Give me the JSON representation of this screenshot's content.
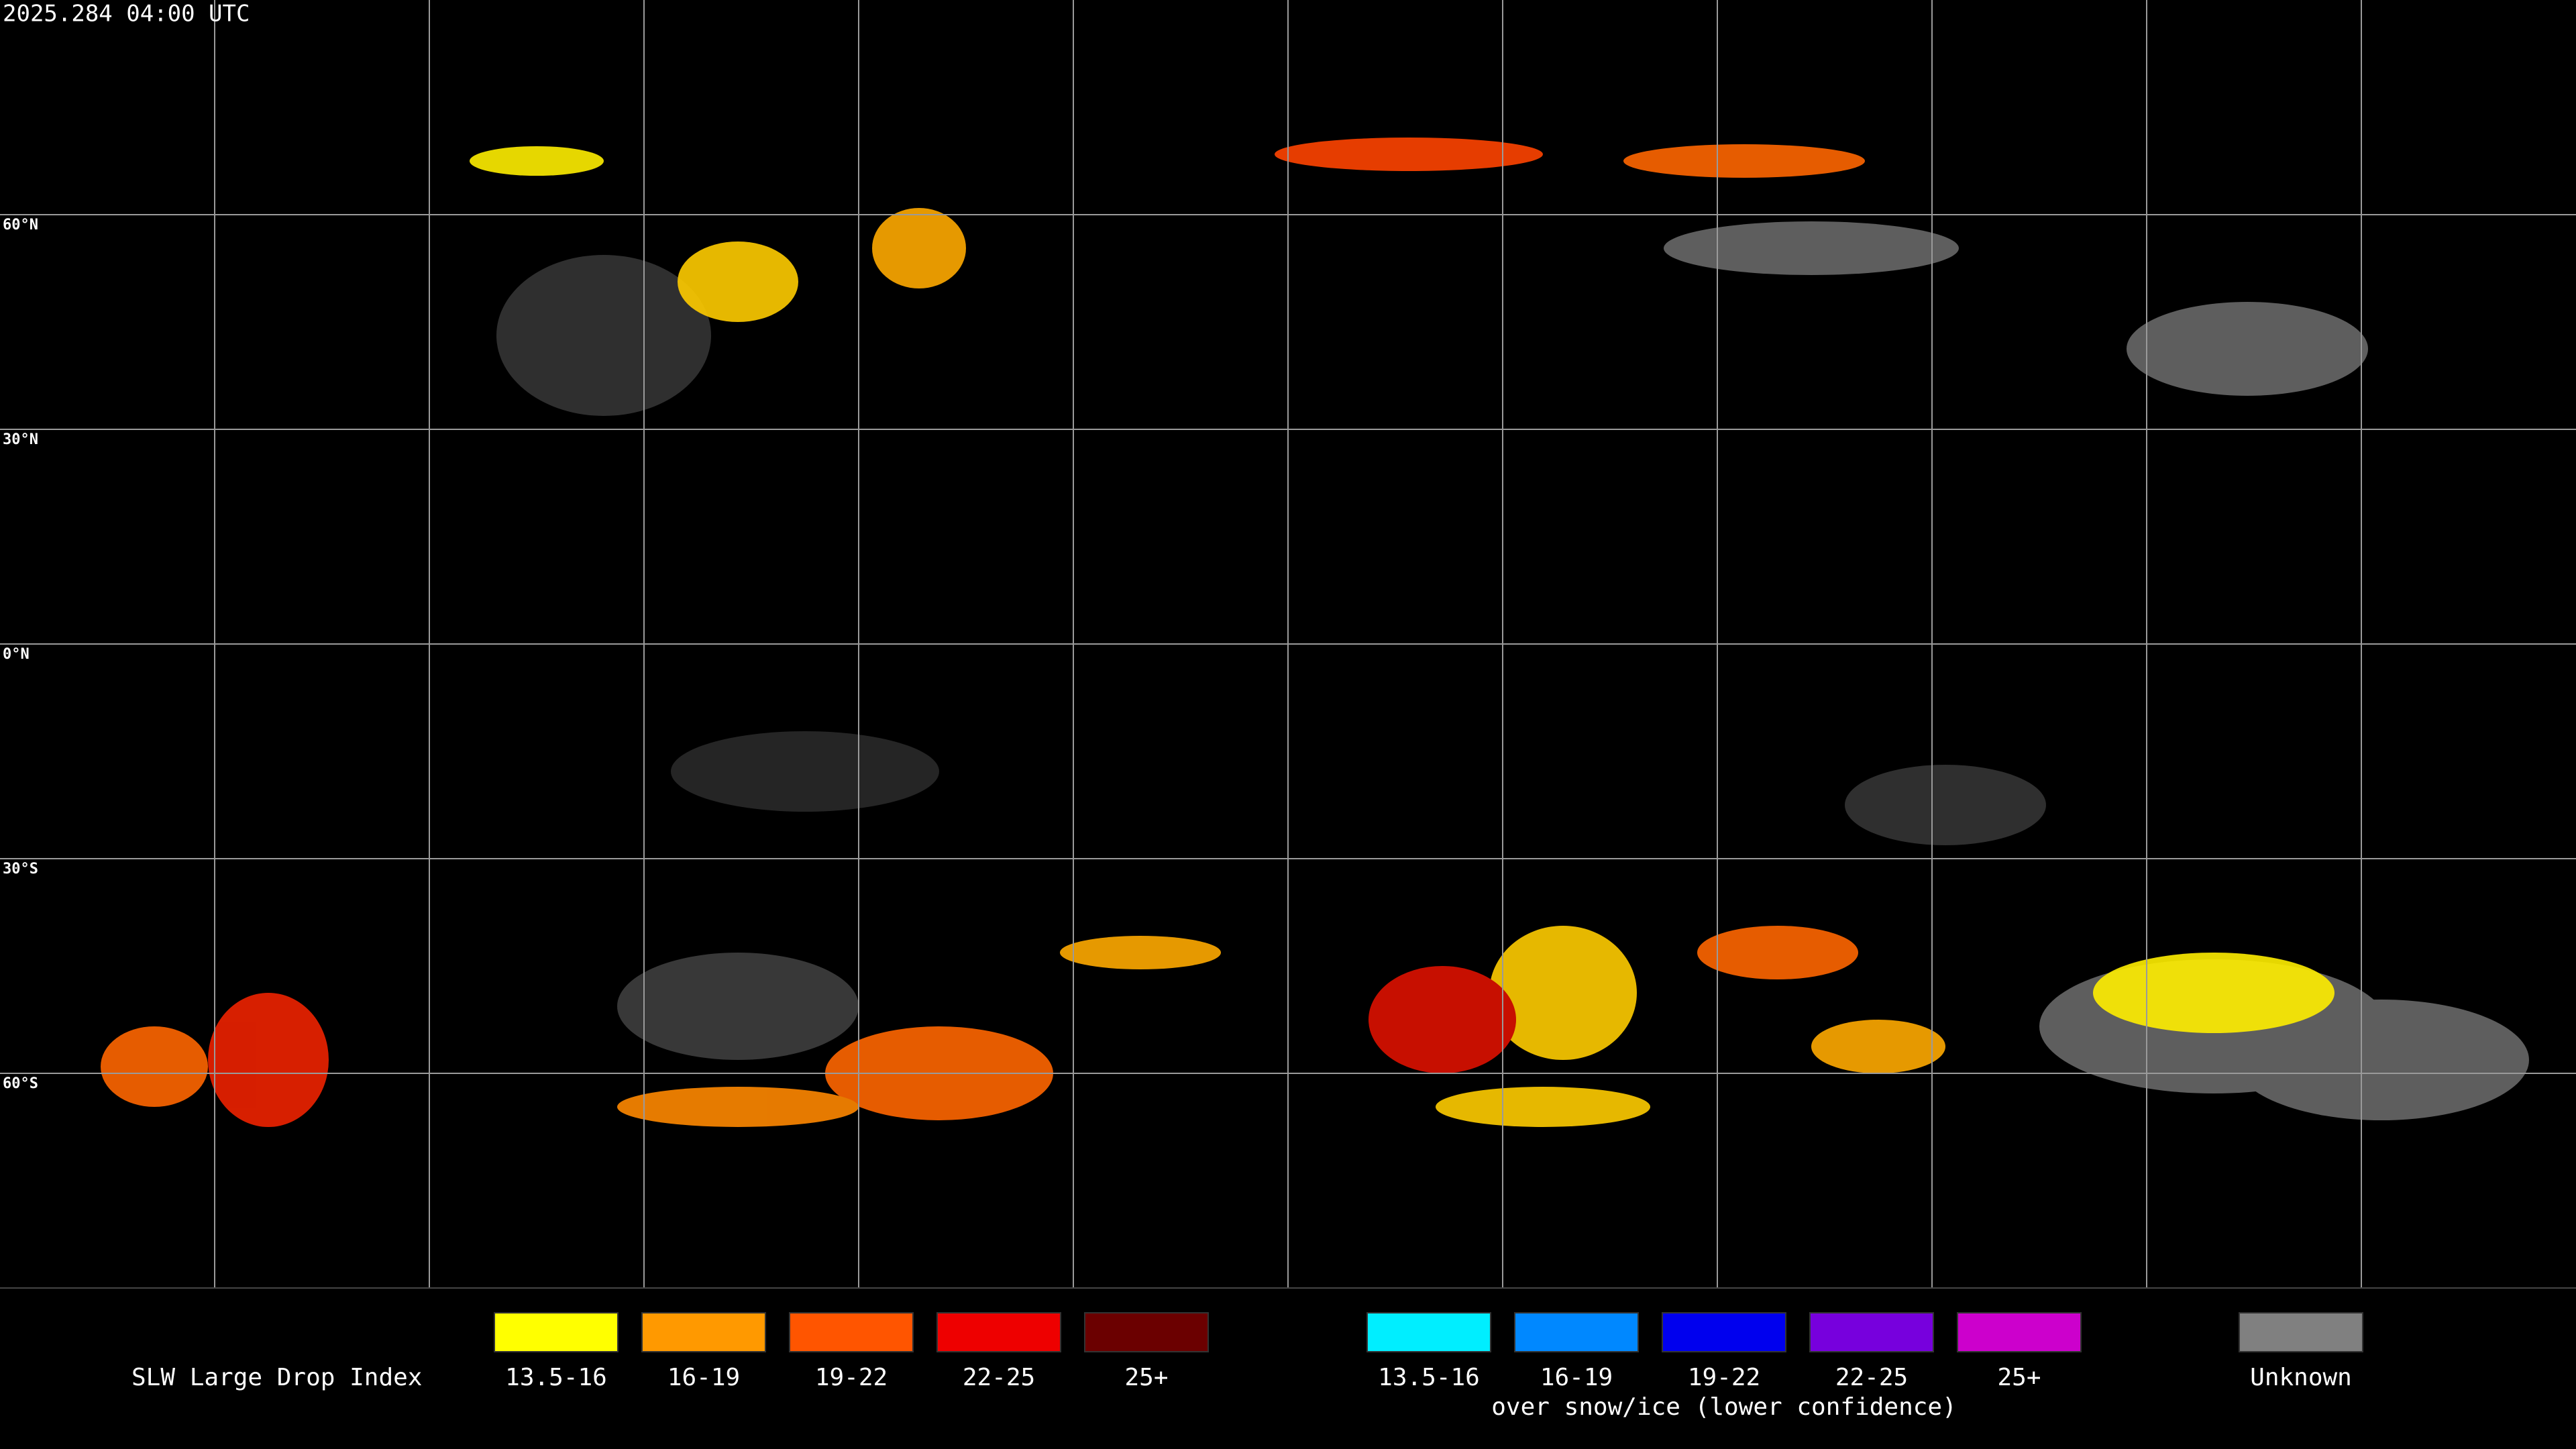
{
  "header": {
    "title": "2025.284 04:00 UTC"
  },
  "map": {
    "latitude_labels": [
      "60°N",
      "30°N",
      "0°N",
      "30°S",
      "60°S"
    ]
  },
  "legend": {
    "title": "SLW Large Drop Index",
    "groups": [
      {
        "items": [
          {
            "label": "13.5-16",
            "color": "#ffff00"
          },
          {
            "label": "16-19",
            "color": "#ff9900"
          },
          {
            "label": "19-22",
            "color": "#ff5500"
          },
          {
            "label": "22-25",
            "color": "#ee0000"
          },
          {
            "label": "25+",
            "color": "#6b0000"
          }
        ]
      },
      {
        "caption": "over snow/ice (lower confidence)",
        "items": [
          {
            "label": "13.5-16",
            "color": "#00eeff"
          },
          {
            "label": "16-19",
            "color": "#0088ff"
          },
          {
            "label": "19-22",
            "color": "#0000ee"
          },
          {
            "label": "22-25",
            "color": "#7700dd"
          },
          {
            "label": "25+",
            "color": "#cc00cc"
          }
        ]
      },
      {
        "items": [
          {
            "label": "Unknown",
            "color": "#808080"
          }
        ]
      }
    ]
  }
}
